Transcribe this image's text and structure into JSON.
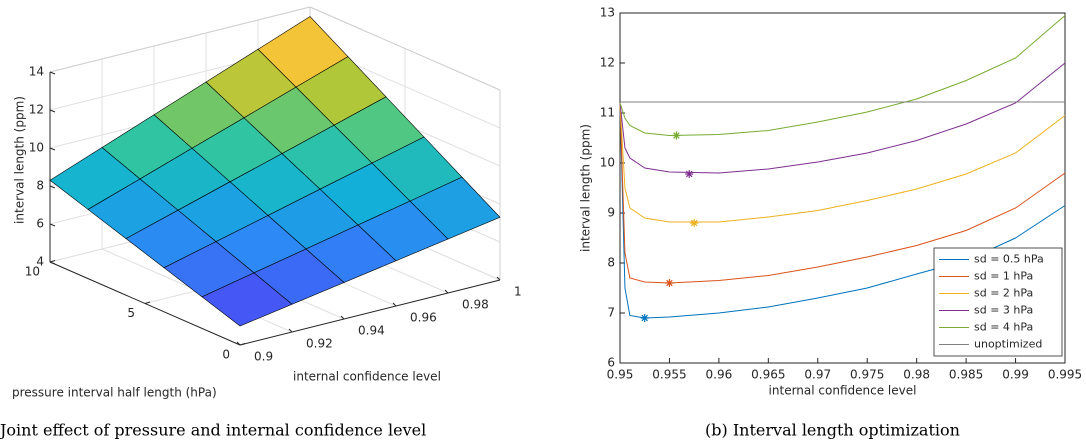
{
  "chart_data": [
    {
      "type": "surface",
      "caption": "Joint effect of pressure and internal confidence level",
      "xlabel": "pressure interval half length (hPa)",
      "ylabel": "internal confidence level",
      "zlabel": "interval length (ppm)",
      "x": [
        0,
        2,
        4,
        6,
        8,
        10
      ],
      "y": [
        0.9,
        0.92,
        0.94,
        0.96,
        0.98,
        1
      ],
      "z": [
        [
          5.0,
          5.46,
          5.92,
          6.38,
          6.84,
          7.3
        ],
        [
          5.66,
          6.24,
          6.81,
          7.39,
          7.96,
          8.54
        ],
        [
          6.32,
          7.01,
          7.7,
          8.4,
          9.09,
          9.78
        ],
        [
          6.98,
          7.79,
          8.6,
          9.4,
          10.21,
          11.02
        ],
        [
          7.64,
          8.56,
          9.49,
          10.41,
          11.34,
          12.26
        ],
        [
          8.3,
          9.34,
          10.38,
          11.42,
          12.46,
          13.5
        ]
      ],
      "xlim": [
        0,
        10
      ],
      "ylim": [
        0.9,
        1
      ],
      "zlim": [
        4,
        14
      ],
      "xticks": [
        0,
        5,
        10
      ],
      "yticks": [
        0.9,
        0.92,
        0.94,
        0.96,
        0.98,
        1
      ],
      "zticks": [
        4,
        6,
        8,
        10,
        12,
        14
      ],
      "colormap": "parula",
      "grid": true
    },
    {
      "type": "line",
      "caption": "(b) Interval length optimization",
      "xlabel": "internal confidence level",
      "ylabel": "interval length (ppm)",
      "x": [
        0.95,
        0.9505,
        0.951,
        0.9525,
        0.955,
        0.96,
        0.965,
        0.97,
        0.975,
        0.98,
        0.985,
        0.99,
        0.995
      ],
      "series": [
        {
          "name": "sd = 0.5 hPa",
          "color": "#0072bd",
          "values": [
            11.2,
            7.5,
            6.95,
            6.9,
            6.92,
            7.0,
            7.12,
            7.3,
            7.5,
            7.78,
            8.05,
            8.5,
            9.15
          ],
          "optimum": {
            "x": 0.9525,
            "y": 6.9
          }
        },
        {
          "name": "sd = 1 hPa",
          "color": "#d95319",
          "values": [
            11.2,
            8.2,
            7.7,
            7.62,
            7.6,
            7.65,
            7.75,
            7.92,
            8.12,
            8.35,
            8.65,
            9.1,
            9.8
          ],
          "optimum": {
            "x": 0.955,
            "y": 7.6
          }
        },
        {
          "name": "sd = 2 hPa",
          "color": "#edb120",
          "values": [
            11.2,
            9.5,
            9.1,
            8.9,
            8.82,
            8.82,
            8.92,
            9.05,
            9.25,
            9.48,
            9.78,
            10.2,
            10.95
          ],
          "optimum": {
            "x": 0.9575,
            "y": 8.8
          }
        },
        {
          "name": "sd = 3 hPa",
          "color": "#7e2f8e",
          "values": [
            11.2,
            10.3,
            10.1,
            9.9,
            9.82,
            9.8,
            9.88,
            10.02,
            10.2,
            10.45,
            10.78,
            11.2,
            12.0
          ],
          "optimum": {
            "x": 0.957,
            "y": 9.78
          }
        },
        {
          "name": "sd = 4 hPa",
          "color": "#77ac30",
          "values": [
            11.2,
            10.9,
            10.75,
            10.6,
            10.55,
            10.57,
            10.65,
            10.82,
            11.02,
            11.28,
            11.65,
            12.1,
            12.95
          ],
          "optimum": {
            "x": 0.9557,
            "y": 10.55
          }
        },
        {
          "name": "unoptimized",
          "color": "#808080",
          "values": [
            11.22,
            11.22,
            11.22,
            11.22,
            11.22,
            11.22,
            11.22,
            11.22,
            11.22,
            11.22,
            11.22,
            11.22,
            11.22
          ]
        }
      ],
      "xlim": [
        0.95,
        0.995
      ],
      "ylim": [
        6,
        13
      ],
      "xticks": [
        0.95,
        0.955,
        0.96,
        0.965,
        0.97,
        0.975,
        0.98,
        0.985,
        0.99,
        0.995
      ],
      "yticks": [
        6,
        7,
        8,
        9,
        10,
        11,
        12,
        13
      ],
      "legend": "lower right",
      "grid": false
    }
  ]
}
